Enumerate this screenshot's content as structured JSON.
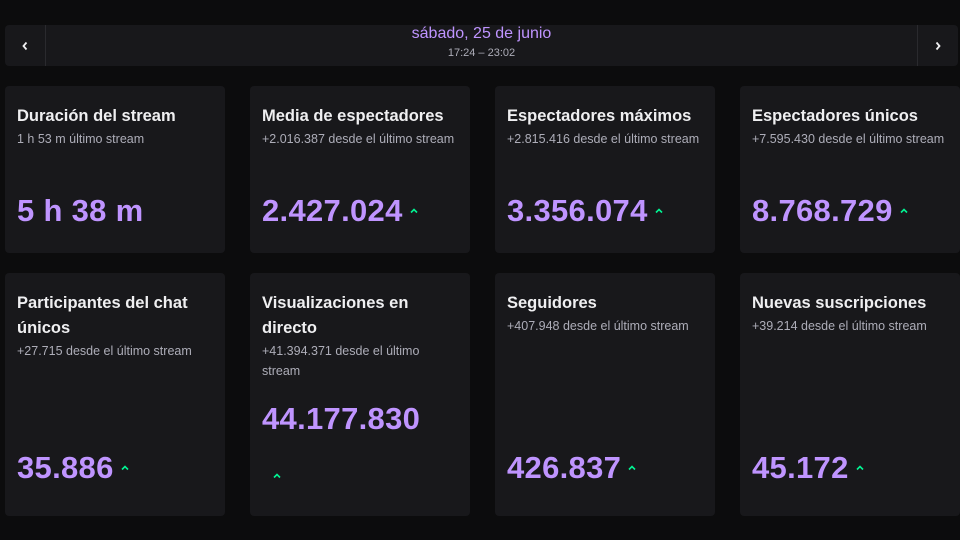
{
  "header": {
    "date": "sábado, 25 de junio",
    "time_range": "17:24 – 23:02",
    "prev_icon": "chevron-left-icon",
    "next_icon": "chevron-right-icon"
  },
  "colors": {
    "accent": "#bf94ff",
    "trend_up": "#00f593",
    "card_bg": "#18181b"
  },
  "cards": [
    {
      "title": "Duración del stream",
      "subtitle": "1 h 53 m último stream",
      "value": "5 h 38 m",
      "trend_icon": ""
    },
    {
      "title": "Media de espectadores",
      "subtitle": "+2.016.387 desde el último stream",
      "value": "2.427.024",
      "trend_icon": "trend-up-icon"
    },
    {
      "title": "Espectadores máximos",
      "subtitle": "+2.815.416 desde el último stream",
      "value": "3.356.074",
      "trend_icon": "trend-up-icon"
    },
    {
      "title": "Espectadores únicos",
      "subtitle": "+7.595.430 desde el último stream",
      "value": "8.768.729",
      "trend_icon": "trend-up-icon"
    },
    {
      "title": "Participantes del chat únicos",
      "subtitle": "+27.715 desde el último stream",
      "value": "35.886",
      "trend_icon": "trend-up-icon"
    },
    {
      "title": "Visualizaciones en directo",
      "subtitle": "+41.394.371 desde el último stream",
      "value": "44.177.830",
      "trend_icon": "trend-up-icon"
    },
    {
      "title": "Seguidores",
      "subtitle": "+407.948 desde el último stream",
      "value": "426.837",
      "trend_icon": "trend-up-icon"
    },
    {
      "title": "Nuevas suscripciones",
      "subtitle": "+39.214 desde el último stream",
      "value": "45.172",
      "trend_icon": "trend-up-icon"
    }
  ]
}
